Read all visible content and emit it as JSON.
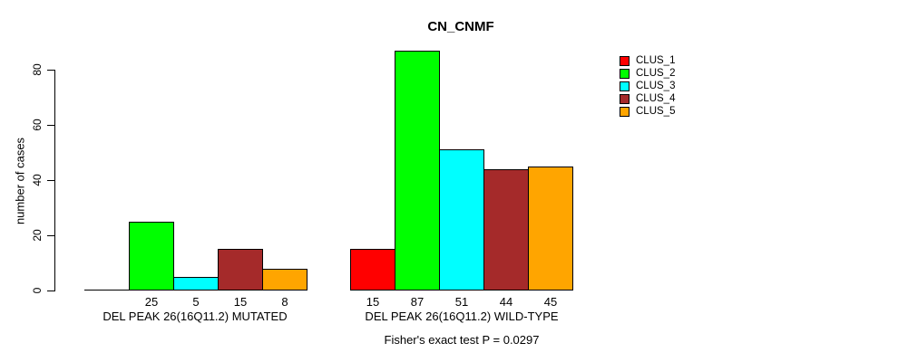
{
  "chart_data": {
    "type": "bar",
    "title": "CN_CNMF",
    "subtitle": "Fisher's exact test P = 0.0297",
    "ylabel": "number of cases",
    "xlabel": "",
    "ylim": [
      0,
      80
    ],
    "yticks": [
      "0",
      "20",
      "40",
      "60",
      "80"
    ],
    "grid": false,
    "legend_position": "top-right",
    "categories": [
      "DEL PEAK 26(16Q11.2) MUTATED",
      "DEL PEAK 26(16Q11.2) WILD-TYPE"
    ],
    "series": [
      {
        "name": "CLUS_1",
        "color": "#FF0000",
        "values": [
          0,
          15
        ]
      },
      {
        "name": "CLUS_2",
        "color": "#00FF00",
        "values": [
          25,
          87
        ]
      },
      {
        "name": "CLUS_3",
        "color": "#00FFFF",
        "values": [
          5,
          51
        ]
      },
      {
        "name": "CLUS_4",
        "color": "#A52A2A",
        "values": [
          15,
          44
        ]
      },
      {
        "name": "CLUS_5",
        "color": "#FFA500",
        "values": [
          8,
          45
        ]
      }
    ],
    "bar_value_labels": {
      "mutated": [
        "",
        "25",
        "5",
        "15",
        "8"
      ],
      "wild_type": [
        "15",
        "87",
        "51",
        "44",
        "45"
      ]
    }
  }
}
